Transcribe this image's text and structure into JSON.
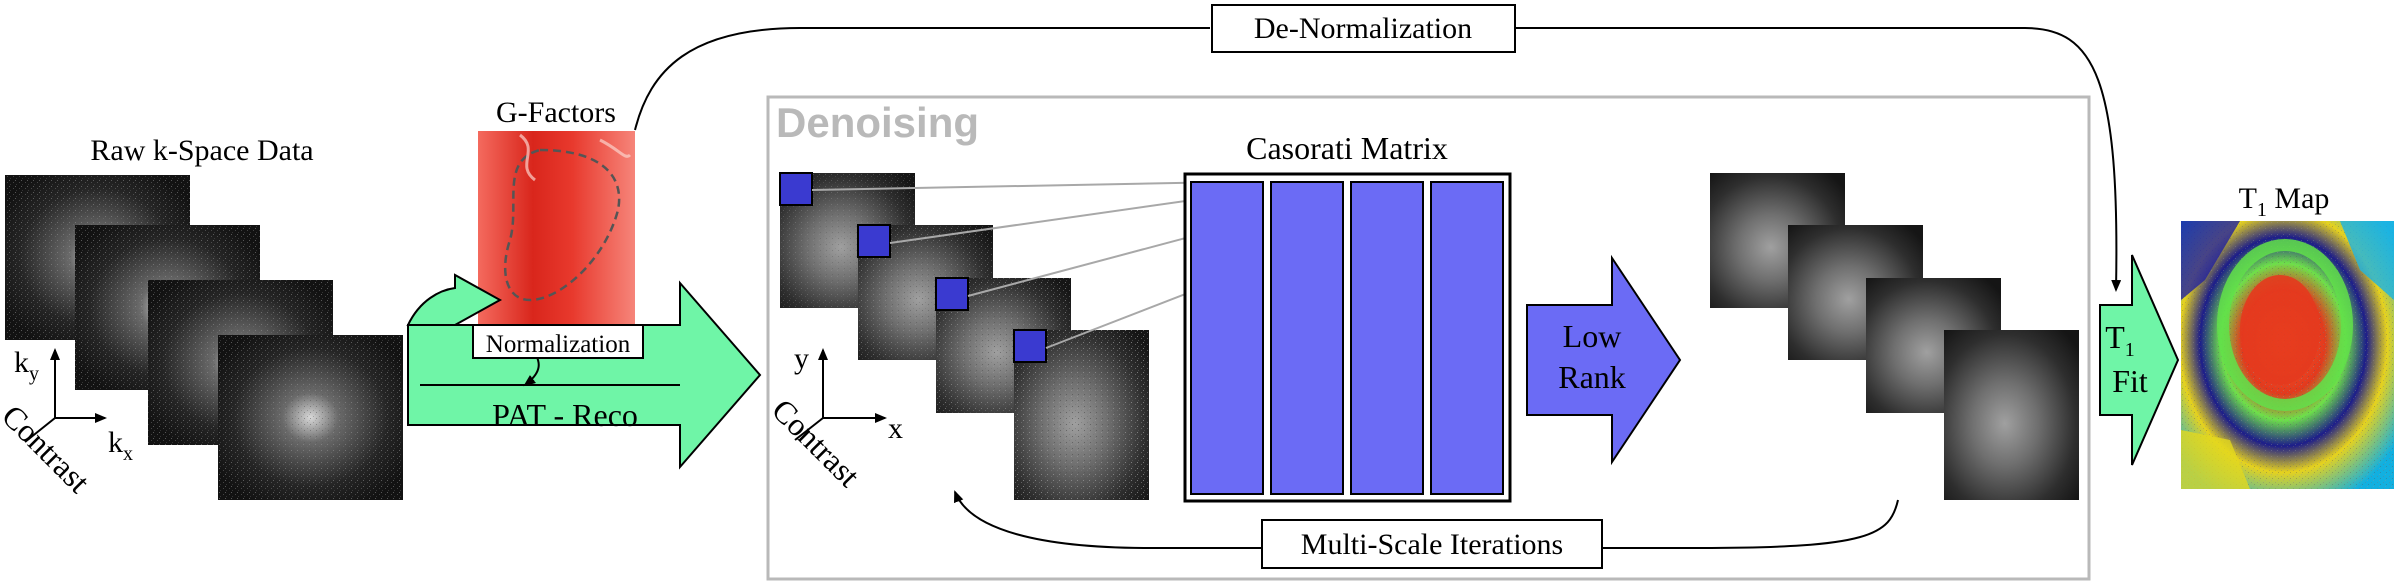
{
  "inputs": {
    "raw_kspace": {
      "title": "Raw k-Space Data",
      "axis_y": "k",
      "axis_y_sub": "y",
      "axis_x": "k",
      "axis_x_sub": "x",
      "axis_depth": "Contrast"
    },
    "gfactors": {
      "title": "G-Factors"
    }
  },
  "steps": {
    "normalization": "Normalization",
    "pat_reco": "PAT - Reco",
    "de_normalization": "De-Normalization"
  },
  "denoising": {
    "title": "Denoising",
    "axis_y": "y",
    "axis_x": "x",
    "axis_depth": "Contrast",
    "casorati_title": "Casorati Matrix",
    "low_rank_line1": "Low",
    "low_rank_line2": "Rank",
    "iterations": "Multi-Scale Iterations"
  },
  "fit": {
    "line1": "T",
    "line1_sub": "1",
    "line2": "Fit"
  },
  "output": {
    "title": "T",
    "title_sub": "1",
    "title_rest": " Map"
  },
  "colors": {
    "green_arrow": "#6ff5a7",
    "casorati_blue": "#6b6bf5",
    "patch_blue": "#3a3ad0",
    "denoise_frame": "#b9b9b9",
    "denoise_title": "#b9b9b9",
    "gfactor_red": "#e8392d"
  }
}
